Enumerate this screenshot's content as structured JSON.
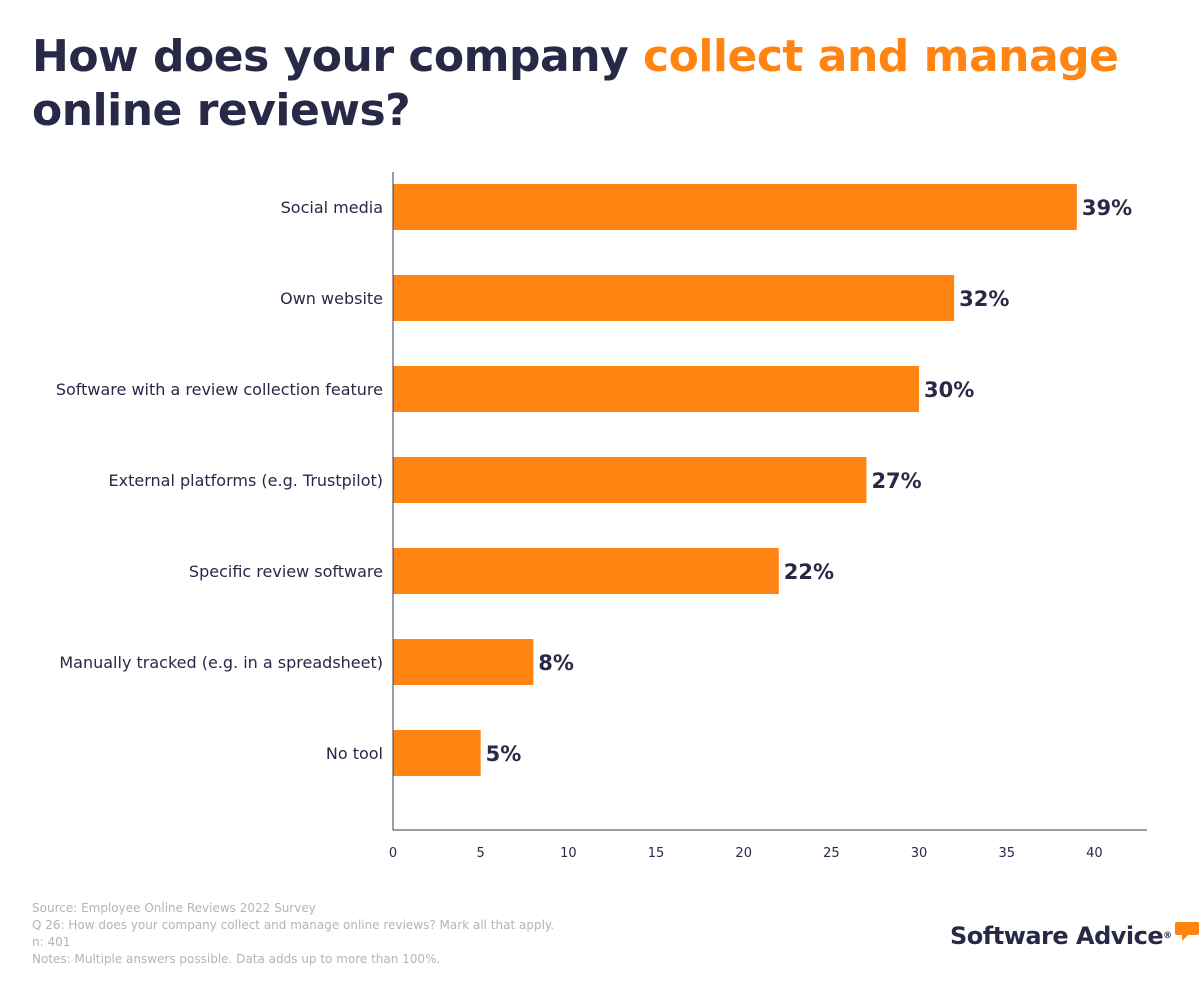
{
  "title": {
    "part1": "How does your company ",
    "highlight": "collect and manage",
    "part2": "online reviews?"
  },
  "chart_data": {
    "type": "bar",
    "orientation": "horizontal",
    "categories": [
      "Social media",
      "Own website",
      "Software with a review collection feature",
      "External platforms (e.g. Trustpilot)",
      "Specific review software",
      "Manually tracked (e.g. in a spreadsheet)",
      "No tool"
    ],
    "values": [
      39,
      32,
      30,
      27,
      22,
      8,
      5
    ],
    "value_labels": [
      "39%",
      "32%",
      "30%",
      "27%",
      "22%",
      "8%",
      "5%"
    ],
    "xlim": [
      0,
      43
    ],
    "xticks": [
      0,
      5,
      10,
      15,
      20,
      25,
      30,
      35,
      40
    ],
    "xlabel": "",
    "ylabel": "",
    "bar_color": "#ff8412",
    "text_color": "#282847",
    "grid": false
  },
  "footer": {
    "source": "Source: Employee Online Reviews 2022 Survey",
    "question": "Q 26: How does your company collect and manage online reviews? Mark all that apply.",
    "n": "n: 401",
    "notes": "Notes: Multiple answers possible. Data adds up to more than 100%."
  },
  "logo": {
    "text": "Software Advice",
    "registered": "®",
    "bubble_color": "#ff8412"
  }
}
